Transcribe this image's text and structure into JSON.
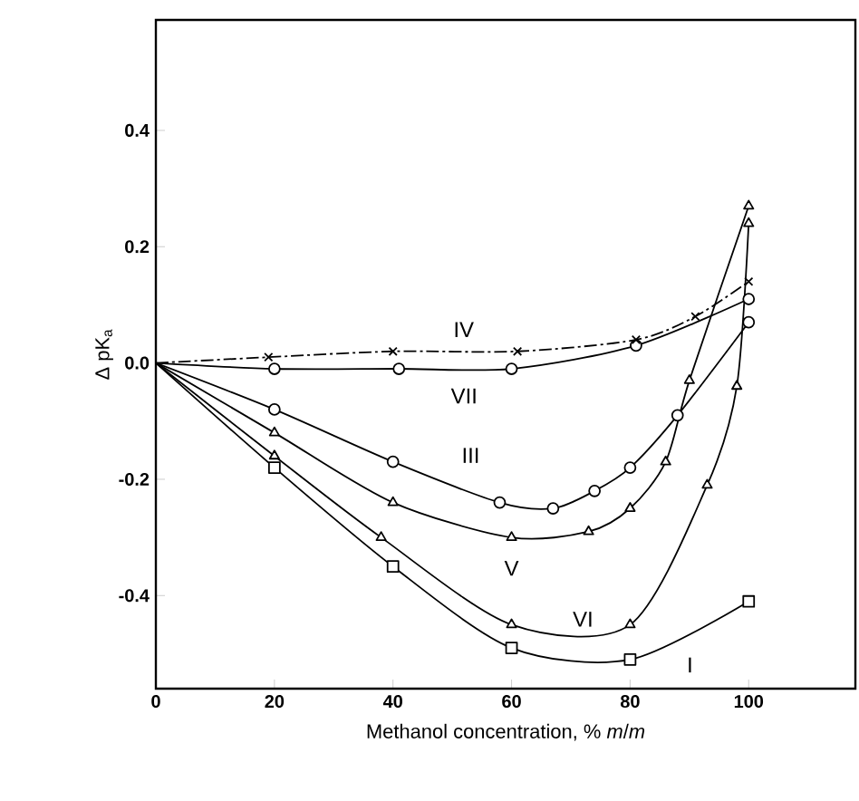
{
  "chart_data": {
    "type": "line",
    "xlabel": "Methanol concentration, % *m*/*m*",
    "ylabel": "Δ pK$_{a}$",
    "xlim": [
      0,
      118
    ],
    "ylim": [
      -0.56,
      0.59
    ],
    "xticks": [
      0,
      20,
      40,
      60,
      80,
      100
    ],
    "yticks": [
      {
        "value": -0.4,
        "label": "-0.4"
      },
      {
        "value": -0.2,
        "label": "-0.2"
      },
      {
        "value": 0,
        "label": "0.0"
      },
      {
        "value": 0.2,
        "label": "0.2"
      },
      {
        "value": 0.4,
        "label": "0.4"
      }
    ],
    "grid": false,
    "series": [
      {
        "name": "I",
        "color": "#000000",
        "marker": "square",
        "line_style": "solid",
        "x": [
          0,
          20,
          40,
          60,
          80,
          100
        ],
        "values": [
          0,
          -0.18,
          -0.35,
          -0.49,
          -0.51,
          -0.41
        ]
      },
      {
        "name": "VI",
        "color": "#000000",
        "marker": "triangle",
        "line_style": "solid",
        "x": [
          0,
          20,
          38,
          60,
          80,
          93,
          98,
          100
        ],
        "values": [
          0,
          -0.16,
          -0.3,
          -0.45,
          -0.45,
          -0.21,
          -0.04,
          0.24
        ]
      },
      {
        "name": "V",
        "color": "#000000",
        "marker": "triangle",
        "line_style": "solid",
        "x": [
          0,
          20,
          40,
          60,
          73,
          80,
          86,
          90,
          100
        ],
        "values": [
          0,
          -0.12,
          -0.24,
          -0.3,
          -0.29,
          -0.25,
          -0.17,
          -0.03,
          0.27
        ]
      },
      {
        "name": "III",
        "color": "#000000",
        "marker": "circle",
        "line_style": "solid",
        "x": [
          0,
          20,
          40,
          58,
          67,
          74,
          80,
          88,
          100
        ],
        "values": [
          0,
          -0.08,
          -0.17,
          -0.24,
          -0.25,
          -0.22,
          -0.18,
          -0.09,
          0.07
        ]
      },
      {
        "name": "VII",
        "color": "#000000",
        "marker": "circle",
        "line_style": "solid",
        "x": [
          0,
          20,
          41,
          60,
          81,
          100
        ],
        "values": [
          0,
          -0.01,
          -0.01,
          -0.01,
          0.03,
          0.11
        ]
      },
      {
        "name": "IV",
        "color": "#000000",
        "marker": "cross",
        "line_style": "dashed",
        "x": [
          0,
          19,
          40,
          61,
          81,
          91,
          100
        ],
        "values": [
          0,
          0.01,
          0.02,
          0.02,
          0.04,
          0.08,
          0.14
        ]
      }
    ]
  }
}
